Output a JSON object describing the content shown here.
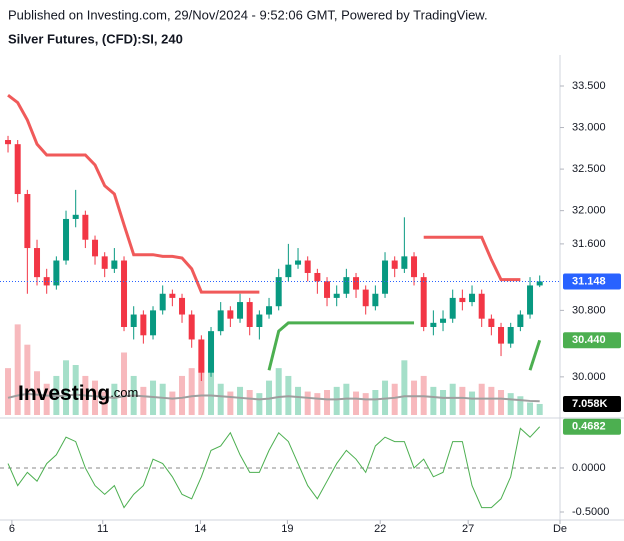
{
  "header": {
    "published": "Published on Investing.com, 29/Nov/2024 - 9:52:06 GMT, Powered by TradingView.",
    "symbol": "Silver Futures, (CFD):SI, 240",
    "logo": "Investing",
    "logo_suffix": ".com"
  },
  "chart_data": {
    "type": "candlestick",
    "xlim": [
      -0.83,
      57.1
    ],
    "xticks": [
      {
        "value": 0.4,
        "label": "6"
      },
      {
        "value": 9.8,
        "label": "11"
      },
      {
        "value": 19.9,
        "label": "14"
      },
      {
        "value": 28.9,
        "label": "19"
      },
      {
        "value": 38.5,
        "label": "22"
      },
      {
        "value": 47.6,
        "label": "27"
      },
      {
        "value": 57.1,
        "label": "De"
      }
    ],
    "ylim": [
      29.541,
      33.873
    ],
    "yticks": [
      {
        "value": 33.5,
        "label": "33.500"
      },
      {
        "value": 33.0,
        "label": "33.000"
      },
      {
        "value": 32.5,
        "label": "32.500"
      },
      {
        "value": 32.0,
        "label": "32.000"
      },
      {
        "value": 31.6,
        "label": "31.600"
      },
      {
        "value": 30.8,
        "label": "30.800"
      },
      {
        "value": 30.0,
        "label": "30.000"
      }
    ],
    "open": [
      32.85,
      32.8,
      32.2,
      31.55,
      31.2,
      31.1,
      31.4,
      31.9,
      31.95,
      31.65,
      31.45,
      31.3,
      31.4,
      30.6,
      30.75,
      30.5,
      30.8,
      31.0,
      30.95,
      30.75,
      30.45,
      30.05,
      30.55,
      30.8,
      30.7,
      30.9,
      30.6,
      30.75,
      30.85,
      31.2,
      31.35,
      31.4,
      31.25,
      31.15,
      30.95,
      31.0,
      31.2,
      31.05,
      30.85,
      31.0,
      31.4,
      31.3,
      31.45,
      31.2,
      30.6,
      30.65,
      30.7,
      30.95,
      30.9,
      31.0,
      30.7,
      30.6,
      30.4,
      30.6,
      30.75,
      31.1
    ],
    "high": [
      32.9,
      32.85,
      32.25,
      31.65,
      31.3,
      31.45,
      32.0,
      32.25,
      32.0,
      31.7,
      31.5,
      31.55,
      31.45,
      30.85,
      30.8,
      30.85,
      31.1,
      31.05,
      31.0,
      30.8,
      30.5,
      30.6,
      30.9,
      30.85,
      31.0,
      30.95,
      30.8,
      30.95,
      31.3,
      31.6,
      31.55,
      31.45,
      31.3,
      31.2,
      31.1,
      31.3,
      31.25,
      31.1,
      31.1,
      31.5,
      31.45,
      31.92,
      31.5,
      31.25,
      30.8,
      30.8,
      31.05,
      31.05,
      31.1,
      31.05,
      30.75,
      30.65,
      30.65,
      30.8,
      31.2,
      31.22
    ],
    "low": [
      32.7,
      32.1,
      31.0,
      31.1,
      31.0,
      31.05,
      31.35,
      31.8,
      31.55,
      31.35,
      31.2,
      31.25,
      30.55,
      30.45,
      30.4,
      30.45,
      30.75,
      30.85,
      30.65,
      30.35,
      29.95,
      30.0,
      30.5,
      30.6,
      30.65,
      30.5,
      30.45,
      30.7,
      30.8,
      31.15,
      31.3,
      31.15,
      31.0,
      30.85,
      30.85,
      30.95,
      30.95,
      30.75,
      30.8,
      30.95,
      31.2,
      31.25,
      31.1,
      30.55,
      30.5,
      30.55,
      30.65,
      30.8,
      30.85,
      30.6,
      30.5,
      30.25,
      30.35,
      30.55,
      30.7,
      31.08
    ],
    "close": [
      32.8,
      32.2,
      31.55,
      31.2,
      31.1,
      31.4,
      31.9,
      31.95,
      31.65,
      31.45,
      31.3,
      31.4,
      30.6,
      30.75,
      30.5,
      30.8,
      31.0,
      30.95,
      30.75,
      30.45,
      30.05,
      30.55,
      30.8,
      30.7,
      30.9,
      30.6,
      30.75,
      30.85,
      31.2,
      31.35,
      31.4,
      31.25,
      31.15,
      30.95,
      31.0,
      31.2,
      31.05,
      30.85,
      31.0,
      31.4,
      31.3,
      31.45,
      31.2,
      30.6,
      30.65,
      30.7,
      30.95,
      30.9,
      31.0,
      30.7,
      30.6,
      30.4,
      30.6,
      30.75,
      31.1,
      31.148
    ],
    "up_color": "#089981",
    "down_color": "#f23645",
    "last_price_color": "#2962ff",
    "series": [
      {
        "color": "#f05a5a",
        "values": [
          33.39,
          33.3,
          33.09,
          32.8,
          32.67,
          32.67,
          32.67,
          32.67,
          32.67,
          32.55,
          32.3,
          32.2,
          31.83,
          31.47,
          31.47,
          31.47,
          31.45,
          31.45,
          31.43,
          31.3,
          31.02,
          31.02,
          31.02,
          31.02,
          31.02,
          31.02,
          31.02,
          null,
          null,
          null,
          null,
          null,
          null,
          null,
          null,
          null,
          null,
          null,
          null,
          null,
          null,
          null,
          null,
          31.68,
          31.68,
          31.68,
          31.68,
          31.68,
          31.68,
          31.68,
          31.41,
          31.17,
          31.17,
          31.17,
          null,
          null
        ]
      },
      {
        "color": "#4caf50",
        "values": [
          null,
          null,
          null,
          null,
          null,
          null,
          null,
          null,
          null,
          null,
          null,
          null,
          null,
          null,
          null,
          null,
          null,
          null,
          null,
          null,
          null,
          null,
          null,
          null,
          null,
          null,
          null,
          30.08,
          30.55,
          30.65,
          30.65,
          30.65,
          30.65,
          30.65,
          30.65,
          30.65,
          30.65,
          30.65,
          30.65,
          30.65,
          30.65,
          30.65,
          30.65,
          null,
          null,
          null,
          null,
          null,
          null,
          null,
          null,
          null,
          null,
          null,
          30.08,
          30.44
        ]
      }
    ],
    "markers": [
      {
        "value": 30.44,
        "label": "30.440",
        "color": "#4caf50"
      }
    ],
    "volume": {
      "values": [
        30000,
        58000,
        45000,
        28000,
        20000,
        25000,
        35000,
        32000,
        25000,
        22000,
        15000,
        20000,
        40000,
        25000,
        18000,
        22000,
        20000,
        15000,
        25000,
        30000,
        35000,
        28000,
        20000,
        15000,
        18000,
        16000,
        14000,
        22000,
        30000,
        25000,
        18000,
        15000,
        14000,
        16000,
        18000,
        20000,
        15000,
        14000,
        16000,
        22000,
        20000,
        35000,
        22000,
        25000,
        18000,
        16000,
        20000,
        18000,
        15000,
        20000,
        18000,
        16000,
        14000,
        12000,
        8000,
        7058
      ],
      "ylim": [
        0,
        64000
      ],
      "up_color": "#a5dfc9",
      "down_color": "#f7b9bd",
      "ma": {
        "color": "#9e9e9e",
        "values": [
          11000,
          12500,
          13500,
          13000,
          12500,
          12000,
          12500,
          13000,
          12500,
          12000,
          11500,
          11000,
          12000,
          12500,
          12000,
          11500,
          11000,
          10500,
          11000,
          12000,
          12500,
          12500,
          12000,
          11500,
          11000,
          10500,
          10000,
          10500,
          11500,
          12000,
          11500,
          11000,
          10500,
          10000,
          10000,
          10500,
          10500,
          10000,
          10000,
          10500,
          11000,
          12000,
          12000,
          12000,
          11500,
          11000,
          11000,
          11000,
          10500,
          10500,
          10500,
          10500,
          10000,
          9500,
          9000,
          8800
        ]
      },
      "badge": {
        "value": 7058,
        "label": "7.058K"
      }
    },
    "oscillator": {
      "color": "#4caf50",
      "ylim": [
        -0.591,
        0.545
      ],
      "yticks": [
        {
          "value": 0,
          "label": "0.0000"
        },
        {
          "value": -0.5,
          "label": "-0.5000"
        }
      ],
      "values": [
        0.05,
        -0.2,
        -0.05,
        -0.15,
        0.05,
        0.15,
        0.35,
        0.3,
        0.0,
        -0.2,
        -0.3,
        -0.2,
        -0.45,
        -0.3,
        -0.2,
        0.1,
        0.05,
        -0.1,
        -0.3,
        -0.35,
        -0.1,
        0.2,
        0.25,
        0.4,
        0.15,
        -0.05,
        -0.05,
        0.2,
        0.4,
        0.3,
        0.05,
        -0.2,
        -0.35,
        -0.15,
        0.05,
        0.2,
        0.1,
        -0.05,
        0.25,
        0.35,
        0.3,
        0.3,
        0.0,
        0.1,
        -0.1,
        -0.05,
        0.3,
        0.3,
        -0.2,
        -0.45,
        -0.45,
        -0.35,
        -0.1,
        0.45,
        0.35,
        0.4682
      ]
    }
  }
}
